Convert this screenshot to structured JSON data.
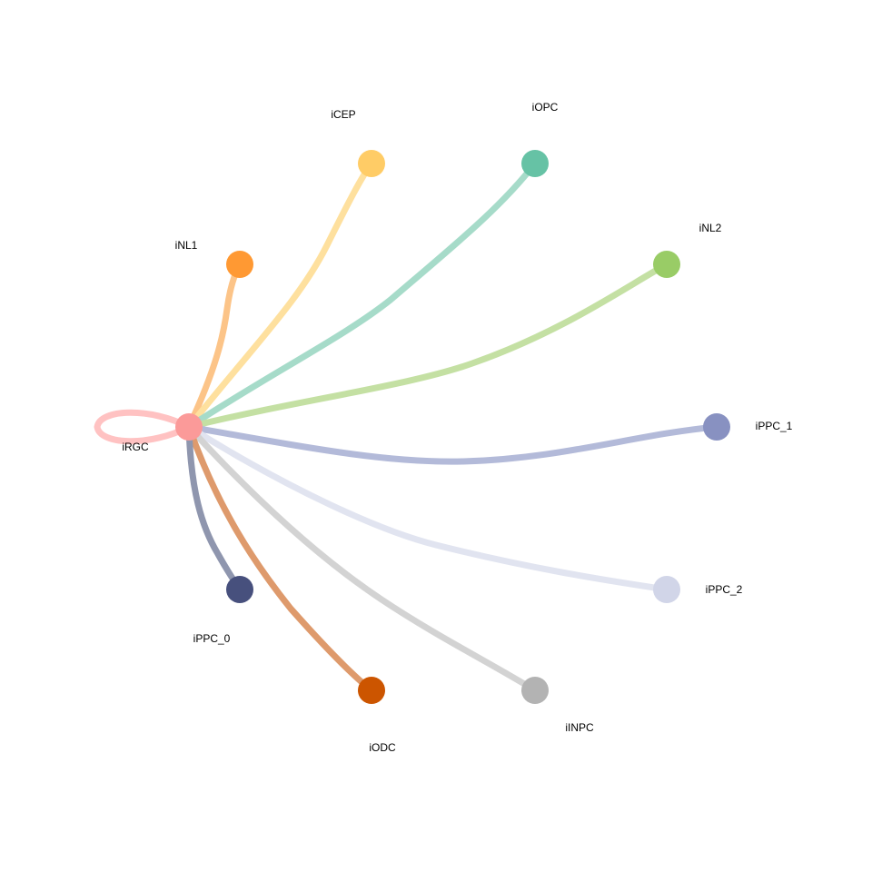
{
  "network": {
    "source": "iRGC",
    "nodes": [
      {
        "id": "iRGC",
        "label": "iRGC",
        "color": "#FB9A99"
      },
      {
        "id": "iNL1",
        "label": "iNL1",
        "color": "#FF9933"
      },
      {
        "id": "iCEP",
        "label": "iCEP",
        "color": "#FFCC66"
      },
      {
        "id": "iOPC",
        "label": "iOPC",
        "color": "#66C2A5"
      },
      {
        "id": "iNL2",
        "label": "iNL2",
        "color": "#99CC66"
      },
      {
        "id": "iPPC_1",
        "label": "iPPC_1",
        "color": "#8891C1"
      },
      {
        "id": "iPPC_2",
        "label": "iPPC_2",
        "color": "#D1D5E8"
      },
      {
        "id": "iINPC",
        "label": "iINPC",
        "color": "#B3B3B3"
      },
      {
        "id": "iODC",
        "label": "iODC",
        "color": "#CC5500"
      },
      {
        "id": "iPPC_0",
        "label": "iPPC_0",
        "color": "#47507D"
      }
    ],
    "edges": [
      {
        "from": "iRGC",
        "to": "iRGC",
        "color": "#FFC2C2"
      },
      {
        "from": "iRGC",
        "to": "iNL1",
        "color": "#FCC488"
      },
      {
        "from": "iRGC",
        "to": "iCEP",
        "color": "#FEE09E"
      },
      {
        "from": "iRGC",
        "to": "iOPC",
        "color": "#A6DBC9"
      },
      {
        "from": "iRGC",
        "to": "iNL2",
        "color": "#C4E0A3"
      },
      {
        "from": "iRGC",
        "to": "iPPC_1",
        "color": "#B3BAD9"
      },
      {
        "from": "iRGC",
        "to": "iPPC_2",
        "color": "#E1E4F0"
      },
      {
        "from": "iRGC",
        "to": "iINPC",
        "color": "#D3D3D3"
      },
      {
        "from": "iRGC",
        "to": "iODC",
        "color": "#DE9A6C"
      },
      {
        "from": "iRGC",
        "to": "iPPC_0",
        "color": "#8F96AE"
      }
    ]
  }
}
